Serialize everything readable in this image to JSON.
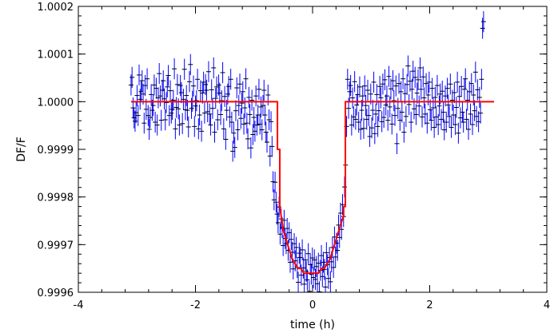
{
  "chart_data": {
    "type": "scatter",
    "xlabel": "time (h)",
    "ylabel": "DF/F",
    "xlim": [
      -4,
      4
    ],
    "ylim": [
      0.9996,
      1.0002
    ],
    "x_ticks": [
      -4,
      -2,
      0,
      2,
      4
    ],
    "x_tick_labels": [
      "-4",
      "-2",
      "0",
      "2",
      "4"
    ],
    "y_ticks": [
      0.9996,
      0.9997,
      0.9998,
      0.9999,
      1.0,
      1.0001,
      1.0002
    ],
    "y_tick_labels": [
      "0.9996",
      "0.9997",
      "0.9998",
      "0.9999",
      "1.0000",
      "1.0001",
      "1.0002"
    ],
    "grid": false,
    "series": [
      {
        "kind": "data_points_with_error_bars",
        "color": "#0000ff",
        "marker_color": "#000000",
        "x_start": -3.1,
        "x_step": 0.0172,
        "count": 361,
        "error": 2.2e-05,
        "y": [
          1.000035,
          1.000051,
          0.999987,
          0.999966,
          0.999959,
          0.999977,
          1.000013,
          0.999971,
          1.000056,
          1.000005,
          1.000021,
          1.000044,
          1.000016,
          0.999955,
          1.000034,
          0.999984,
          1.000048,
          0.999971,
          0.999942,
          0.999967,
          1.000015,
          0.999982,
          0.999992,
          1.000035,
          0.999957,
          1.000028,
          0.999951,
          1.000008,
          1.000059,
          1.000012,
          0.999961,
          1.000024,
          1.000044,
          1.000006,
          0.999962,
          0.999998,
          1.000031,
          1.000055,
          0.999971,
          1.000023,
          0.999976,
          0.999984,
          1.000003,
          1.000069,
          0.999943,
          0.999988,
          1.000036,
          0.999985,
          0.999951,
          1.000034,
          1.000019,
          0.999954,
          1.000005,
          1.000068,
          0.999983,
          1.000013,
          0.999982,
          0.999947,
          1.000042,
          1.000078,
          0.999986,
          1.000001,
          1.000033,
          0.999948,
          0.999991,
          1.000002,
          1.000047,
          0.999943,
          0.999972,
          1.000023,
          0.999938,
          1.000018,
          1.000041,
          0.999976,
          1.000036,
          1.000024,
          0.999979,
          1.000063,
          0.999974,
          0.999951,
          1.000025,
          0.999986,
          1.000071,
          0.999936,
          1.000007,
          1.000031,
          0.999962,
          1.000035,
          1.000018,
          0.999973,
          1.000002,
          1.000061,
          0.999943,
          1.000011,
          0.999921,
          0.999982,
          1.000016,
          1.000032,
          0.999968,
          1.000047,
          0.999957,
          0.999896,
          0.999934,
          0.999904,
          0.999981,
          1.000029,
          0.999941,
          0.999992,
          1.000037,
          0.999965,
          0.999997,
          1.000021,
          0.999953,
          0.999987,
          1.000048,
          0.999955,
          0.999922,
          1.000009,
          0.999973,
          0.999903,
          1.000003,
          0.999931,
          0.999967,
          0.999938,
          1.000012,
          0.999951,
          0.999972,
          1.000026,
          0.999953,
          0.999989,
          0.999941,
          0.999992,
          1.000024,
          0.999972,
          0.999936,
          0.999915,
          1.000014,
          0.999962,
          0.999886,
          0.999958,
          0.999906,
          0.999832,
          0.999794,
          0.999831,
          0.999789,
          0.999764,
          0.999746,
          0.999779,
          0.999722,
          0.999754,
          0.999736,
          0.999698,
          0.999751,
          0.999713,
          0.999702,
          0.999734,
          0.999688,
          0.999725,
          0.999663,
          0.999711,
          0.999684,
          0.999649,
          0.999702,
          0.999666,
          0.999694,
          0.999652,
          0.999621,
          0.999682,
          0.999673,
          0.999636,
          0.999689,
          0.999651,
          0.999617,
          0.999668,
          0.999644,
          0.999626,
          0.999681,
          0.999602,
          0.999658,
          0.999638,
          0.999672,
          0.999631,
          0.999668,
          0.999627,
          0.999654,
          0.999618,
          0.999661,
          0.999601,
          0.999646,
          0.999677,
          0.999633,
          0.999663,
          0.999648,
          0.999611,
          0.999683,
          0.999658,
          0.999629,
          0.999673,
          0.999622,
          0.999664,
          0.999694,
          0.999652,
          0.999716,
          0.999674,
          0.999703,
          0.999688,
          0.999741,
          0.999715,
          0.999766,
          0.999732,
          0.999784,
          0.999759,
          0.999821,
          0.999867,
          0.999948,
          1.000047,
          0.999986,
          1.000021,
          1.000034,
          0.999951,
          1.000008,
          0.999968,
          1.000042,
          0.999963,
          0.999993,
          1.000015,
          0.999957,
          1.000031,
          0.999942,
          0.999982,
          1.000012,
          0.999944,
          1.000033,
          0.999992,
          0.999963,
          1.000024,
          0.999971,
          0.999927,
          1.000016,
          0.999945,
          0.999982,
          1.000041,
          0.999933,
          0.999974,
          1.000015,
          0.999948,
          0.999981,
          1.000032,
          1.000008,
          0.999958,
          1.000037,
          0.999967,
          1.000046,
          0.999993,
          1.000012,
          0.999961,
          1.000053,
          0.999989,
          1.000027,
          0.999953,
          1.000044,
          1.000002,
          0.999971,
          1.000033,
          0.999912,
          0.999986,
          1.000038,
          0.999961,
          1.000021,
          0.999978,
          1.000048,
          0.999936,
          1.000017,
          0.999969,
          1.000036,
          1.000075,
          0.999994,
          1.000043,
          0.999957,
          1.000026,
          1.000064,
          0.999985,
          1.000051,
          0.999973,
          1.000018,
          1.000046,
          0.999991,
          1.000071,
          1.000026,
          0.999968,
          1.000052,
          1.000008,
          0.999974,
          1.000038,
          0.999955,
          1.000014,
          1.000041,
          0.999983,
          0.999961,
          1.000028,
          0.999987,
          0.999946,
          1.000009,
          0.999968,
          1.000034,
          0.999952,
          0.999991,
          1.000016,
          0.999963,
          1.000022,
          0.999978,
          0.999941,
          1.000012,
          0.999957,
          1.000028,
          0.999993,
          0.999969,
          1.000037,
          0.999946,
          1.000003,
          0.999972,
          1.000019,
          0.999952,
          0.999988,
          1.000041,
          0.999934,
          1.000011,
          0.999966,
          1.000032,
          0.999978,
          0.999957,
          1.000026,
          1.000048,
          0.999963,
          1.000003,
          0.999942,
          1.000021,
          0.999974,
          1.000038,
          0.999952,
          1.000014,
          0.999981,
          1.000062,
          0.999969,
          1.000025,
          0.999958,
          1.000009,
          0.999976,
          1.000047,
          1.000154,
          1.000168
        ]
      },
      {
        "kind": "model_line",
        "color": "#ff0000",
        "x": [
          -3.1,
          -0.6,
          -0.6,
          -0.56,
          -0.56,
          -0.5,
          -0.45,
          -0.4,
          -0.35,
          -0.3,
          -0.25,
          -0.2,
          -0.15,
          -0.1,
          -0.05,
          0.0,
          0.05,
          0.1,
          0.15,
          0.2,
          0.25,
          0.3,
          0.35,
          0.4,
          0.45,
          0.5,
          0.53,
          0.53,
          0.56,
          0.56,
          3.1
        ],
        "y": [
          1.0,
          1.0,
          0.9999,
          0.9999,
          0.99978,
          0.99973,
          0.99971,
          0.99969,
          0.99967,
          0.99966,
          0.99965,
          0.99965,
          0.99964,
          0.99964,
          0.99964,
          0.99964,
          0.99964,
          0.99964,
          0.99965,
          0.99965,
          0.99966,
          0.99967,
          0.99969,
          0.99971,
          0.99973,
          0.99975,
          0.99976,
          0.99978,
          0.99978,
          1.0,
          1.0
        ]
      }
    ]
  }
}
